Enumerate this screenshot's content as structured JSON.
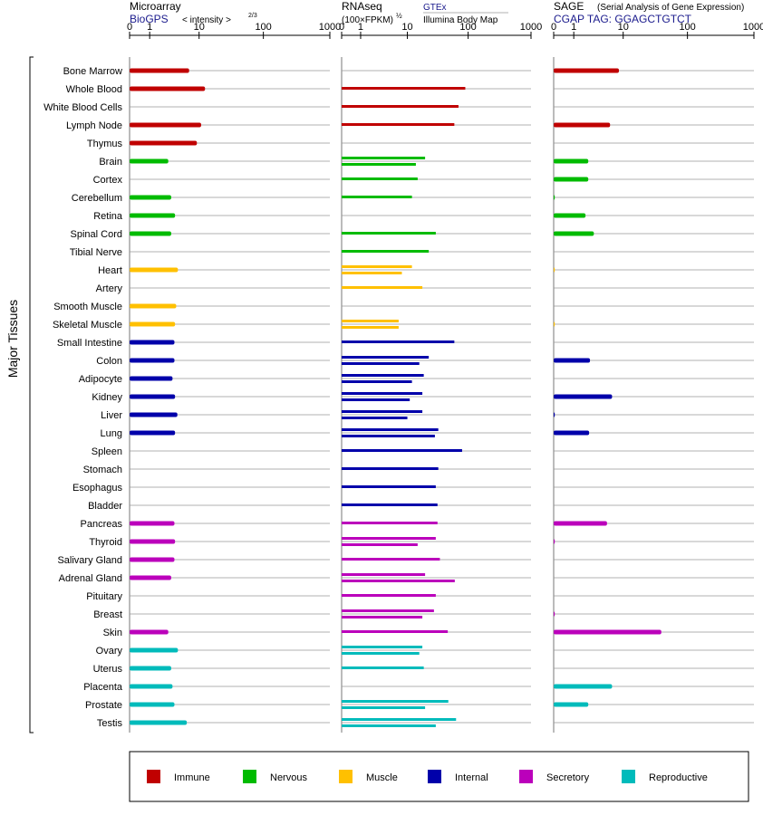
{
  "chart_data": {
    "type": "bar",
    "ylabel": "Major Tissues",
    "x_scale": "log",
    "ticks": [
      "0",
      "1",
      "10",
      "100",
      "1000"
    ],
    "tick_values": [
      0,
      1,
      10,
      100,
      1000
    ],
    "xlim": [
      0,
      1000
    ],
    "colors": {
      "Immune": "#c00000",
      "Nervous": "#00bb00",
      "Muscle": "#ffc000",
      "Internal": "#0000aa",
      "Secretory": "#bb00bb",
      "Reproductive": "#00bbbb"
    },
    "legend": [
      "Immune",
      "Nervous",
      "Muscle",
      "Internal",
      "Secretory",
      "Reproductive"
    ],
    "tissues": [
      {
        "name": "Bone Marrow",
        "group": "Immune"
      },
      {
        "name": "Whole Blood",
        "group": "Immune"
      },
      {
        "name": "White Blood Cells",
        "group": "Immune"
      },
      {
        "name": "Lymph Node",
        "group": "Immune"
      },
      {
        "name": "Thymus",
        "group": "Immune"
      },
      {
        "name": "Brain",
        "group": "Nervous"
      },
      {
        "name": "Cortex",
        "group": "Nervous"
      },
      {
        "name": "Cerebellum",
        "group": "Nervous"
      },
      {
        "name": "Retina",
        "group": "Nervous"
      },
      {
        "name": "Spinal Cord",
        "group": "Nervous"
      },
      {
        "name": "Tibial Nerve",
        "group": "Nervous"
      },
      {
        "name": "Heart",
        "group": "Muscle"
      },
      {
        "name": "Artery",
        "group": "Muscle"
      },
      {
        "name": "Smooth Muscle",
        "group": "Muscle"
      },
      {
        "name": "Skeletal Muscle",
        "group": "Muscle"
      },
      {
        "name": "Small Intestine",
        "group": "Internal"
      },
      {
        "name": "Colon",
        "group": "Internal"
      },
      {
        "name": "Adipocyte",
        "group": "Internal"
      },
      {
        "name": "Kidney",
        "group": "Internal"
      },
      {
        "name": "Liver",
        "group": "Internal"
      },
      {
        "name": "Lung",
        "group": "Internal"
      },
      {
        "name": "Spleen",
        "group": "Internal"
      },
      {
        "name": "Stomach",
        "group": "Internal"
      },
      {
        "name": "Esophagus",
        "group": "Internal"
      },
      {
        "name": "Bladder",
        "group": "Internal"
      },
      {
        "name": "Pancreas",
        "group": "Secretory"
      },
      {
        "name": "Thyroid",
        "group": "Secretory"
      },
      {
        "name": "Salivary Gland",
        "group": "Secretory"
      },
      {
        "name": "Adrenal Gland",
        "group": "Secretory"
      },
      {
        "name": "Pituitary",
        "group": "Secretory"
      },
      {
        "name": "Breast",
        "group": "Secretory"
      },
      {
        "name": "Skin",
        "group": "Secretory"
      },
      {
        "name": "Ovary",
        "group": "Reproductive"
      },
      {
        "name": "Uterus",
        "group": "Reproductive"
      },
      {
        "name": "Placenta",
        "group": "Reproductive"
      },
      {
        "name": "Prostate",
        "group": "Reproductive"
      },
      {
        "name": "Testis",
        "group": "Reproductive"
      }
    ],
    "panels": [
      {
        "id": "microarray",
        "title": "Microarray",
        "subtitle": "BioGPS",
        "unit": "< intensity >",
        "unit_exp": "2/3",
        "values": [
          6.8,
          12.5,
          null,
          10.8,
          9.2,
          2.8,
          null,
          3.2,
          3.8,
          3.2,
          null,
          4.3,
          null,
          4.0,
          3.8,
          3.7,
          3.7,
          3.4,
          3.8,
          4.2,
          3.8,
          null,
          null,
          null,
          null,
          3.7,
          3.8,
          3.7,
          3.2,
          null,
          null,
          2.8,
          4.3,
          3.2,
          3.4,
          3.7,
          6.2
        ]
      },
      {
        "id": "rnaseq",
        "title": "RNAseq",
        "unit": "(100×FPKM)",
        "unit_exp": "½",
        "source1": "GTEx",
        "source2": "Illumina Body Map",
        "values_gtex": [
          null,
          90,
          70,
          60,
          null,
          20,
          15,
          12,
          null,
          30,
          23,
          12,
          18,
          null,
          7,
          60,
          23,
          19,
          18,
          18,
          33,
          80,
          33,
          30,
          32,
          32,
          30,
          35,
          20,
          30,
          28,
          47,
          18,
          19,
          null,
          48,
          64
        ],
        "values_body": [
          null,
          null,
          null,
          null,
          null,
          14,
          null,
          null,
          null,
          null,
          null,
          8,
          null,
          null,
          7,
          null,
          16,
          12,
          11,
          10,
          29,
          null,
          null,
          null,
          null,
          null,
          15,
          null,
          61,
          null,
          18,
          null,
          16,
          null,
          null,
          20,
          30
        ]
      },
      {
        "id": "sage",
        "title": "SAGE",
        "title_note": "(Serial Analysis of Gene Expression)",
        "subtitle": "CGAP TAG: GGAGCTGTCT",
        "values": [
          8.5,
          null,
          null,
          6.0,
          null,
          2.3,
          2.3,
          0.02,
          2.0,
          3.0,
          null,
          0.01,
          null,
          null,
          0.01,
          null,
          2.5,
          null,
          6.5,
          0.02,
          2.4,
          null,
          null,
          null,
          null,
          5.3,
          0.02,
          null,
          null,
          null,
          0.02,
          40,
          null,
          null,
          6.5,
          2.3,
          null
        ]
      }
    ]
  },
  "legend_title_visible": false
}
